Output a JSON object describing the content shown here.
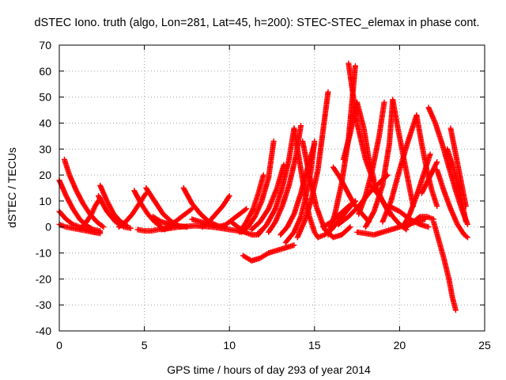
{
  "chart_data": {
    "type": "scatter",
    "title": "dSTEC Iono. truth (algo, Lon=281, Lat=45, h=200): STEC-STEC_elemax in phase cont.",
    "xlabel": "GPS time / hours of day 293 of year 2014",
    "ylabel": "dSTEC  / TECUs",
    "xlim": [
      0,
      25
    ],
    "ylim": [
      -40,
      70
    ],
    "xticks": [
      0,
      5,
      10,
      15,
      20,
      25
    ],
    "yticks": [
      -40,
      -30,
      -20,
      -10,
      0,
      10,
      20,
      30,
      40,
      50,
      60,
      70
    ],
    "grid": true,
    "marker": "plus",
    "color": "#ff0000",
    "series": [
      {
        "x": [
          0.0,
          0.4,
          0.8,
          1.2,
          1.6,
          2.0,
          2.4
        ],
        "y": [
          18,
          12,
          7,
          3,
          0.5,
          -1,
          -1.5
        ]
      },
      {
        "x": [
          0.0,
          0.4,
          0.8,
          1.2,
          1.6,
          2.0,
          2.4
        ],
        "y": [
          6,
          3,
          1,
          0,
          -1,
          -2,
          -2.5
        ]
      },
      {
        "x": [
          0.0,
          0.4,
          0.8,
          1.2,
          1.6,
          2.0,
          2.4
        ],
        "y": [
          1,
          0,
          -0.5,
          -1,
          -1.5,
          -2,
          -2
        ]
      },
      {
        "x": [
          0.3,
          0.6,
          1.0,
          1.4,
          1.8,
          2.2,
          2.6
        ],
        "y": [
          26,
          20,
          14,
          9,
          5,
          2,
          0
        ]
      },
      {
        "x": [
          1.2,
          1.6,
          1.9,
          2.1,
          2.4
        ],
        "y": [
          -1,
          2,
          5,
          8,
          11
        ]
      },
      {
        "x": [
          2.4,
          2.8,
          3.2,
          3.6,
          4.0
        ],
        "y": [
          16,
          10,
          5,
          2,
          0.5
        ]
      },
      {
        "x": [
          2.3,
          2.8,
          3.3,
          3.8,
          4.2
        ],
        "y": [
          12,
          6,
          2,
          0,
          -0.5
        ]
      },
      {
        "x": [
          3.5,
          3.9,
          4.3,
          4.7,
          5.1
        ],
        "y": [
          0,
          2,
          5,
          9,
          13
        ]
      },
      {
        "x": [
          4.4,
          4.8,
          5.2,
          5.6,
          6.0
        ],
        "y": [
          14,
          9,
          5,
          2,
          0
        ]
      },
      {
        "x": [
          4.6,
          5.0,
          5.4,
          5.8,
          6.2,
          6.6
        ],
        "y": [
          -1,
          -1.5,
          -1.5,
          -1,
          -0.5,
          0
        ]
      },
      {
        "x": [
          5.1,
          5.6,
          6.1,
          6.6,
          7.1
        ],
        "y": [
          15,
          10,
          5,
          2,
          0
        ]
      },
      {
        "x": [
          5.5,
          6.0,
          6.5,
          7.0,
          7.5
        ],
        "y": [
          4,
          2,
          1,
          0.5,
          0
        ]
      },
      {
        "x": [
          6.2,
          6.6,
          7.0,
          7.4,
          7.8
        ],
        "y": [
          -1,
          1,
          3,
          5,
          7
        ]
      },
      {
        "x": [
          7.3,
          7.8,
          8.3,
          8.8,
          9.3
        ],
        "y": [
          15,
          9,
          5,
          2,
          0.5
        ]
      },
      {
        "x": [
          7.8,
          8.3,
          8.8,
          9.3,
          9.8
        ],
        "y": [
          3,
          2,
          1,
          0.5,
          0
        ]
      },
      {
        "x": [
          8.4,
          8.8,
          9.2,
          9.6,
          10.0
        ],
        "y": [
          0,
          2,
          5,
          8,
          12
        ]
      },
      {
        "x": [
          6.0,
          7.0,
          8.0,
          9.0,
          10.0,
          11.0
        ],
        "y": [
          -1,
          0,
          0.5,
          0,
          -1,
          -2
        ]
      },
      {
        "x": [
          9.4,
          9.8,
          10.2,
          10.6,
          11.0
        ],
        "y": [
          0,
          1,
          3,
          5,
          7
        ]
      },
      {
        "x": [
          10.1,
          10.5,
          10.9,
          11.3,
          11.6,
          11.9
        ],
        "y": [
          2,
          0,
          -2,
          -3,
          -3,
          -1
        ]
      },
      {
        "x": [
          10.6,
          11.0,
          11.4,
          11.7,
          12.0
        ],
        "y": [
          -2,
          2,
          7,
          13,
          20
        ]
      },
      {
        "x": [
          10.7,
          11.1,
          11.5,
          11.9,
          12.3,
          12.6
        ],
        "y": [
          -2,
          0,
          4,
          10,
          19,
          33
        ]
      },
      {
        "x": [
          11.3,
          11.8,
          12.3,
          12.8,
          13.2
        ],
        "y": [
          -1,
          2,
          7,
          15,
          24
        ]
      },
      {
        "x": [
          11.7,
          12.2,
          12.7,
          13.1,
          13.5,
          13.8
        ],
        "y": [
          -3,
          1,
          7,
          15,
          26,
          38
        ]
      },
      {
        "x": [
          12.3,
          12.7,
          13.1,
          13.5,
          13.9,
          14.2
        ],
        "y": [
          -2,
          2,
          8,
          16,
          27,
          39
        ]
      },
      {
        "x": [
          13.0,
          13.4,
          13.8,
          14.2,
          14.6,
          15.0
        ],
        "y": [
          -3,
          0,
          5,
          13,
          23,
          32
        ]
      },
      {
        "x": [
          10.8,
          11.3,
          11.8,
          12.3,
          12.8,
          13.3,
          13.8
        ],
        "y": [
          -11,
          -13,
          -12,
          -10,
          -9,
          -8,
          -7
        ]
      },
      {
        "x": [
          13.3,
          13.8,
          14.2,
          14.5,
          14.8,
          15.0
        ],
        "y": [
          -6,
          -2,
          4,
          12,
          22,
          33
        ]
      },
      {
        "x": [
          14.0,
          14.4,
          14.8,
          15.2,
          15.5,
          15.8
        ],
        "y": [
          -4,
          2,
          10,
          22,
          37,
          52
        ]
      },
      {
        "x": [
          13.8,
          14.1,
          14.4,
          14.7,
          15.0,
          15.2
        ],
        "y": [
          38,
          26,
          14,
          4,
          -2,
          -4
        ]
      },
      {
        "x": [
          14.3,
          14.7,
          15.1,
          15.6,
          16.1,
          16.6,
          17.1
        ],
        "y": [
          33,
          20,
          8,
          -1,
          -4,
          -3,
          0
        ]
      },
      {
        "x": [
          15.2,
          15.6,
          16.0,
          16.5,
          17.0,
          17.4
        ],
        "y": [
          -4,
          -3,
          -1,
          3,
          7,
          10
        ]
      },
      {
        "x": [
          15.8,
          16.2,
          16.6,
          17.0,
          17.4
        ],
        "y": [
          -3,
          5,
          17,
          34,
          62
        ]
      },
      {
        "x": [
          15.5,
          16.0,
          16.5,
          17.0,
          17.4
        ],
        "y": [
          0,
          2,
          5,
          8,
          10
        ]
      },
      {
        "x": [
          16.1,
          16.5,
          16.9,
          17.3,
          17.8,
          18.2
        ],
        "y": [
          23,
          19,
          14,
          9,
          5,
          2
        ]
      },
      {
        "x": [
          16.7,
          17.1,
          17.5,
          17.9,
          18.2,
          18.5
        ],
        "y": [
          26,
          36,
          48,
          38,
          26,
          18
        ]
      },
      {
        "x": [
          17.0,
          17.5,
          18.0,
          18.5,
          19.0,
          19.4
        ],
        "y": [
          63,
          40,
          26,
          17,
          10,
          5
        ]
      },
      {
        "x": [
          16.4,
          17.0,
          17.6,
          18.2,
          18.8,
          19.3
        ],
        "y": [
          1,
          4,
          8,
          13,
          17,
          20
        ]
      },
      {
        "x": [
          17.6,
          18.0,
          18.4,
          18.8,
          19.1
        ],
        "y": [
          5,
          12,
          22,
          35,
          48
        ]
      },
      {
        "x": [
          18.0,
          18.5,
          19.0,
          19.4,
          19.6
        ],
        "y": [
          0,
          6,
          16,
          32,
          49
        ]
      },
      {
        "x": [
          19.6,
          19.9,
          20.2,
          20.5,
          20.8
        ],
        "y": [
          49,
          38,
          28,
          18,
          8
        ]
      },
      {
        "x": [
          18.3,
          18.8,
          19.2,
          19.6,
          20.0,
          20.4
        ],
        "y": [
          16,
          12,
          8,
          4,
          1,
          -1
        ]
      },
      {
        "x": [
          17.5,
          18.5,
          19.5,
          20.5,
          21.5
        ],
        "y": [
          -2,
          -3,
          -1,
          1,
          3
        ]
      },
      {
        "x": [
          19.0,
          19.5,
          20.0,
          20.5,
          21.0
        ],
        "y": [
          2,
          10,
          22,
          33,
          43
        ]
      },
      {
        "x": [
          21.0,
          21.3,
          21.6,
          21.9,
          22.2
        ],
        "y": [
          43,
          32,
          22,
          14,
          8
        ]
      },
      {
        "x": [
          19.4,
          20.0,
          20.6,
          21.2,
          21.7
        ],
        "y": [
          8,
          6,
          3,
          1,
          0
        ]
      },
      {
        "x": [
          20.2,
          20.6,
          21.0,
          21.4,
          21.8
        ],
        "y": [
          0,
          5,
          12,
          20,
          28
        ]
      },
      {
        "x": [
          20.4,
          20.8,
          21.2,
          21.6,
          22.0
        ],
        "y": [
          0,
          2,
          4,
          4,
          3
        ]
      },
      {
        "x": [
          21.7,
          22.1,
          22.5,
          22.9,
          23.3,
          23.7,
          24.0
        ],
        "y": [
          46,
          40,
          32,
          23,
          14,
          6,
          1
        ]
      },
      {
        "x": [
          22.0,
          22.3,
          22.6,
          22.9,
          23.1,
          23.3
        ],
        "y": [
          2,
          -5,
          -12,
          -20,
          -27,
          -32
        ]
      },
      {
        "x": [
          21.3,
          21.6,
          21.9,
          22.2
        ],
        "y": [
          13,
          17,
          21,
          25
        ]
      },
      {
        "x": [
          22.2,
          22.6,
          23.0,
          23.4,
          23.8,
          24.0
        ],
        "y": [
          22,
          14,
          7,
          1,
          -3,
          -4
        ]
      },
      {
        "x": [
          23.0,
          23.3,
          23.6,
          23.9
        ],
        "y": [
          38,
          28,
          18,
          8
        ]
      },
      {
        "x": [
          22.8,
          23.2,
          23.6,
          23.9
        ],
        "y": [
          30,
          22,
          12,
          2
        ]
      }
    ]
  }
}
